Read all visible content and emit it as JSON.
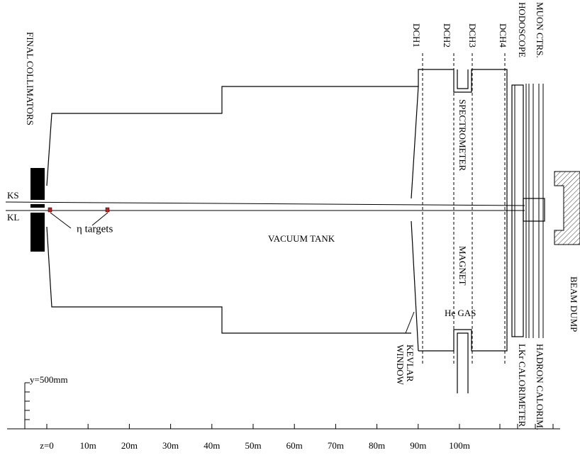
{
  "labels": {
    "collimators": "FINAL COLLIMATORS",
    "ks": "KS",
    "kl": "KL",
    "targets": "η targets",
    "tank": "VACUUM TANK",
    "dch1": "DCH1",
    "dch2": "DCH2",
    "dch3": "DCH3",
    "dch4": "DCH4",
    "hodoscope": "HODOSCOPE",
    "muon": "MUON CTRS.",
    "spectrometer": "SPECTROMETER",
    "magnet": "MAGNET",
    "he_gas": "He GAS",
    "kevlar": "KEVLAR",
    "window": "WINDOW",
    "lkr": "LKr CALORIMETER",
    "hadron": "HADRON CALORIM.",
    "beam_dump": "BEAM DUMP"
  },
  "scale": {
    "y_label": "y=500mm",
    "z_labels": [
      "z=0",
      "10m",
      "20m",
      "30m",
      "40m",
      "50m",
      "60m",
      "70m",
      "80m",
      "90m",
      "100m"
    ]
  }
}
